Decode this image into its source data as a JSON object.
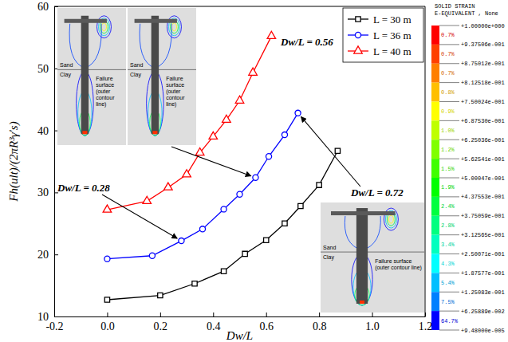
{
  "chart_data": {
    "type": "line",
    "x_label": "Dw/L",
    "y_label": "Fh(ult)/(2πR³γ′s)",
    "xlim": [
      -0.2,
      1.2
    ],
    "ylim": [
      10,
      60
    ],
    "xticks": [
      -0.2,
      {
        "value": 0,
        "label": "0.0"
      },
      0.2,
      0.4,
      0.6,
      0.8,
      {
        "value": 1,
        "label": "1.0"
      },
      1.2
    ],
    "yticks": [
      10,
      20,
      30,
      40,
      50,
      60
    ],
    "legend": "upper right",
    "series": [
      {
        "name": "L = 30 m",
        "color": "#000000",
        "marker": "square",
        "x": [
          0,
          0.2,
          0.33,
          0.44,
          0.52,
          0.6,
          0.67,
          0.73,
          0.8,
          0.87
        ],
        "values": [
          12.7,
          13.4,
          15.3,
          17.3,
          20.1,
          22.3,
          25.0,
          27.8,
          31.2,
          36.7
        ]
      },
      {
        "name": "L = 36 m",
        "color": "#0000ff",
        "marker": "circle",
        "x": [
          0,
          0.17,
          0.28,
          0.36,
          0.44,
          0.5,
          0.56,
          0.61,
          0.67,
          0.72
        ],
        "values": [
          19.3,
          19.8,
          22.2,
          24.1,
          27.3,
          29.7,
          32.4,
          35.8,
          39.3,
          42.8
        ]
      },
      {
        "name": "L = 40 m",
        "color": "#ff0000",
        "marker": "triangle",
        "x": [
          0,
          0.15,
          0.23,
          0.3,
          0.35,
          0.4,
          0.45,
          0.5,
          0.55,
          0.62
        ],
        "values": [
          27.2,
          28.6,
          30.8,
          32.9,
          36.4,
          39.0,
          41.7,
          44.8,
          49.3,
          55.2
        ]
      }
    ],
    "annotations": [
      {
        "text": "Dw/L = 0.28",
        "x": 0.28,
        "y": 22.2
      },
      {
        "text": "Dw/L = 0.56",
        "x": 0.56,
        "y": 32.4
      },
      {
        "text": "Dw/L = 0.72",
        "x": 0.72,
        "y": 42.8
      }
    ],
    "insets": [
      {
        "sand": "Sand",
        "clay": "Clay",
        "failure_label": "Failure surface (outer contour line)"
      },
      {
        "sand": "Sand",
        "clay": "Clay",
        "failure_label": "Failure surface (outer contour line)"
      },
      {
        "sand": "Sand",
        "clay": "Clay",
        "failure_label": "Failure surface (outer contour line)"
      }
    ],
    "contour_legend": {
      "title": [
        "SOLID STRAIN",
        "E-EQUIVALENT , None"
      ],
      "levels": [
        {
          "value": 1.0,
          "label": "+1.00000e+000"
        },
        {
          "value": 0.937506,
          "label": "+9.37506e-001"
        },
        {
          "value": 0.875012,
          "label": "+8.75012e-001"
        },
        {
          "value": 0.812518,
          "label": "+8.12518e-001"
        },
        {
          "value": 0.750024,
          "label": "+7.50024e-001"
        },
        {
          "value": 0.68753,
          "label": "+6.87530e-001"
        },
        {
          "value": 0.625036,
          "label": "+6.25036e-001"
        },
        {
          "value": 0.562541,
          "label": "+5.62541e-001"
        },
        {
          "value": 0.500047,
          "label": "+5.00047e-001"
        },
        {
          "value": 0.437553,
          "label": "+4.37553e-001"
        },
        {
          "value": 0.375059,
          "label": "+3.75059e-001"
        },
        {
          "value": 0.312565,
          "label": "+3.12565e-001"
        },
        {
          "value": 0.250071,
          "label": "+2.50071e-001"
        },
        {
          "value": 0.187577,
          "label": "+1.87577e-001"
        },
        {
          "value": 0.125083,
          "label": "+1.25083e-001"
        },
        {
          "value": 0.0625889,
          "label": "+6.25889e-002"
        },
        {
          "value": 9.48e-05,
          "label": "+9.48000e-005"
        }
      ],
      "values": [
        0.7,
        0.7,
        0.7,
        0.8,
        0.9,
        1.0,
        1.2,
        1.5,
        1.9,
        2.4,
        2.8,
        3.4,
        4.3,
        5.4,
        7.5,
        64.7
      ],
      "value_labels": [
        "0.7%",
        "0.7%",
        "0.7%",
        "0.8%",
        "0.9%",
        "1.0%",
        "1.2%",
        "1.5%",
        "1.9%",
        "2.4%",
        "2.8%",
        "3.4%",
        "4.3%",
        "5.4%",
        "7.5%",
        "64.7%"
      ],
      "colors": [
        "#ff0000",
        "#ff4000",
        "#ff7f00",
        "#ffbf00",
        "#ffff00",
        "#bfff00",
        "#80ff00",
        "#40ff00",
        "#00ff00",
        "#00ff40",
        "#00ff80",
        "#00ffbf",
        "#00ffff",
        "#00bfff",
        "#0080ff",
        "#0000ff"
      ]
    }
  }
}
